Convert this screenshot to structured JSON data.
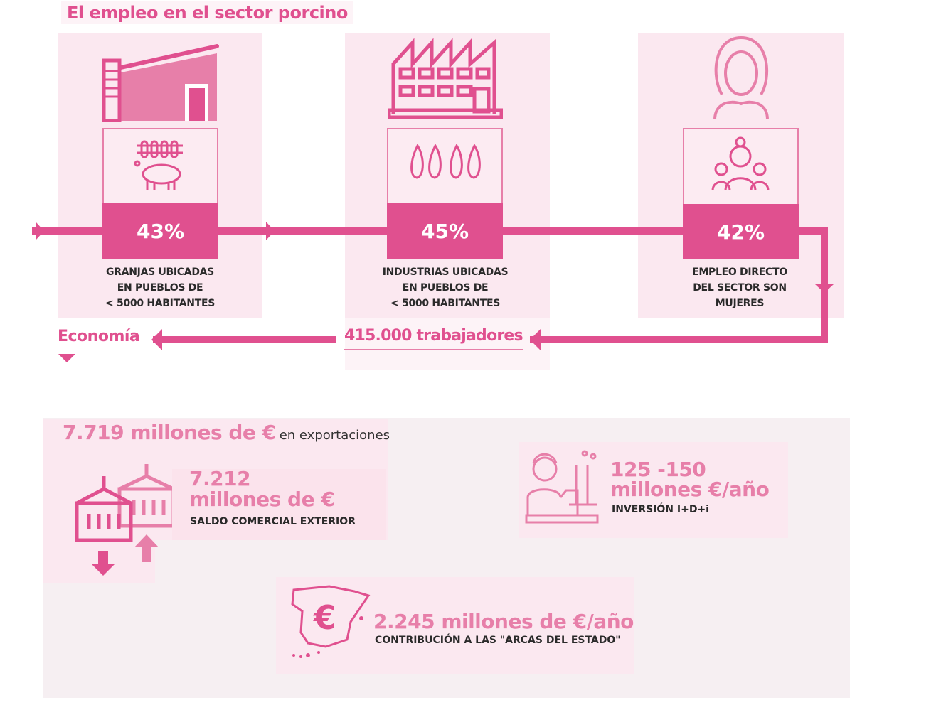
{
  "title": "El empleo en el sector porcino",
  "colors": {
    "primary": "#e0508f",
    "secondary": "#e77fa9",
    "panel": "#fbe8f0"
  },
  "employment": [
    {
      "icon": "pig-farm-icon",
      "sub_icon": "pig-icon",
      "percent": "43%",
      "label_lines": [
        "GRANJAS UBICADAS",
        "EN PUEBLOS DE",
        "< 5000 HABITANTES"
      ]
    },
    {
      "icon": "factory-icon",
      "sub_icon": "ham-icon",
      "percent": "45%",
      "label_lines": [
        "INDUSTRIAS UBICADAS",
        "EN PUEBLOS DE",
        "< 5000 HABITANTES"
      ]
    },
    {
      "icon": "woman-icon",
      "sub_icon": "women-workers-icon",
      "percent": "42%",
      "label_lines": [
        "EMPLEO DIRECTO",
        "DEL SECTOR SON",
        "MUJERES"
      ]
    }
  ],
  "flow": {
    "workers": "415.000 trabajadores",
    "economy": "Economía"
  },
  "economy": {
    "exports": {
      "value": "7.719 millones de €",
      "suffix": "en exportaciones"
    },
    "trade": {
      "value_line1": "7.212",
      "value_line2": "millones de €",
      "label": "SALDO COMERCIAL EXTERIOR"
    },
    "rnd": {
      "value_line1": "125 -150",
      "value_line2": "millones €/año",
      "label": "INVERSIÓN I+D+i"
    },
    "tax": {
      "value": "2.245 millones de €/año",
      "label": "CONTRIBUCIÓN A LAS \"ARCAS DEL ESTADO\"",
      "icon_text": "€"
    }
  }
}
